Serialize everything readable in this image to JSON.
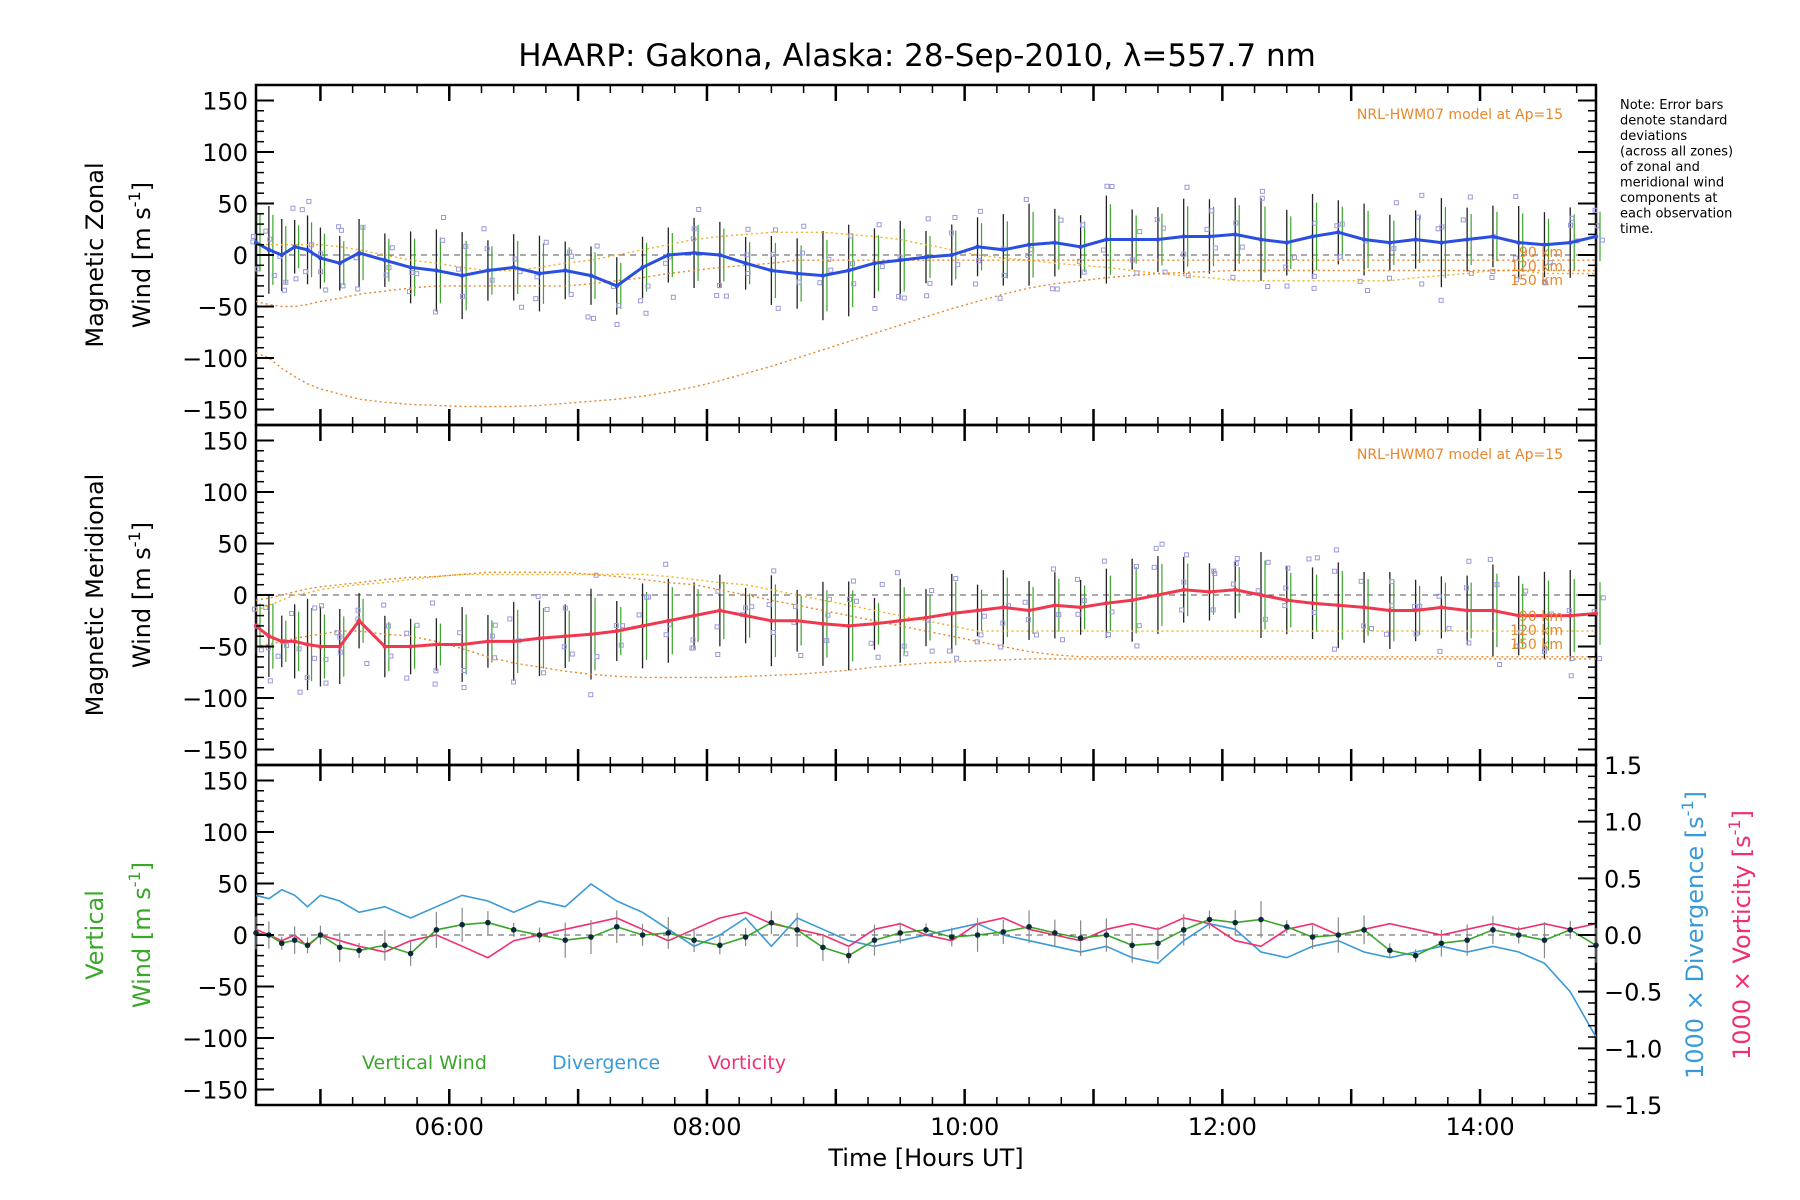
{
  "title": "HAARP: Gakona,  Alaska: 28-Sep-2010, λ=557.7 nm",
  "note": [
    "Note: Error bars",
    "denote standard",
    "deviations",
    "(across all zones)",
    "of zonal and",
    "meridional wind",
    "components at",
    "each observation",
    "time."
  ],
  "xlabel": "Time [Hours UT]",
  "x_ticks": [
    "06:00",
    "08:00",
    "10:00",
    "12:00",
    "14:00"
  ],
  "y_ticks": [
    "150",
    "100",
    "50",
    "0",
    "−50",
    "−100",
    "−150"
  ],
  "y2_ticks": [
    "1.5",
    "1.0",
    "0.5",
    "0.0",
    "−0.5",
    "−1.0",
    "−1.5"
  ],
  "colors": {
    "zonal": "#2a4fe0",
    "meridional": "#f0384f",
    "vertical": "#3aa62a",
    "divergence": "#3a9ad8",
    "vorticity": "#f0306e",
    "model": "#e8862a",
    "scatter": "#9999dd"
  },
  "panels": {
    "zonal": {
      "ylabel_line1": "Magnetic Zonal",
      "ylabel_line2": "Wind [m s",
      "ylabel_sup": "-1",
      "ylabel_end": "]",
      "model_label": "NRL-HWM07 model at Ap=15",
      "alt_labels": [
        "90 km",
        "120 km",
        "150 km"
      ]
    },
    "meridional": {
      "ylabel_line1": "Magnetic Meridional",
      "ylabel_line2": "Wind [m s",
      "ylabel_sup": "-1",
      "ylabel_end": "]",
      "model_label": "NRL-HWM07 model at Ap=15",
      "alt_labels": [
        "90 km",
        "120 km",
        "150 km"
      ]
    },
    "vertical": {
      "ylabel_line1": "Vertical",
      "ylabel_line2": "Wind [m s",
      "ylabel_sup": "-1",
      "ylabel_end": "]",
      "y2_label_div": "1000 × Divergence [s",
      "y2_label_vort": "1000 × Vorticity [s",
      "y2_sup": "-1",
      "y2_end": "]",
      "legend": [
        "Vertical Wind",
        "Divergence",
        "Vorticity"
      ]
    }
  },
  "chart_data": [
    {
      "type": "line",
      "title": "HAARP: Gakona,  Alaska: 28-Sep-2010, λ=557.7 nm",
      "ylabel": "Magnetic Zonal Wind [m s-1]",
      "xlim": [
        4.5,
        14.9
      ],
      "ylim": [
        -165,
        165
      ],
      "x": [
        4.5,
        4.6,
        4.7,
        4.8,
        4.9,
        5.0,
        5.15,
        5.3,
        5.5,
        5.7,
        5.9,
        6.1,
        6.3,
        6.5,
        6.7,
        6.9,
        7.1,
        7.3,
        7.5,
        7.7,
        7.9,
        8.1,
        8.3,
        8.5,
        8.7,
        8.9,
        9.1,
        9.3,
        9.5,
        9.7,
        9.9,
        10.1,
        10.3,
        10.5,
        10.7,
        10.9,
        11.1,
        11.3,
        11.5,
        11.7,
        11.9,
        12.1,
        12.3,
        12.5,
        12.7,
        12.9,
        13.1,
        13.3,
        13.5,
        13.7,
        13.9,
        14.1,
        14.3,
        14.5,
        14.7,
        14.9
      ],
      "series": [
        {
          "values": [
            12,
            5,
            0,
            8,
            5,
            -3,
            -8,
            2,
            -5,
            -12,
            -15,
            -20,
            -15,
            -12,
            -18,
            -15,
            -20,
            -30,
            -12,
            0,
            2,
            0,
            -8,
            -15,
            -18,
            -20,
            -15,
            -8,
            -5,
            -2,
            0,
            8,
            5,
            10,
            12,
            8,
            15,
            15,
            15,
            18,
            18,
            20,
            15,
            12,
            18,
            22,
            15,
            12,
            15,
            12,
            15,
            18,
            12,
            10,
            12,
            18
          ]
        },
        {
          "values": [
            10,
            10,
            10,
            10,
            10,
            10,
            8,
            5,
            0,
            -5,
            -8,
            -12,
            -15,
            -15,
            -12,
            -8,
            -5,
            0,
            5,
            10,
            15,
            18,
            20,
            22,
            22,
            22,
            20,
            18,
            15,
            10,
            5,
            0,
            -3,
            -5,
            -8,
            -10,
            -12,
            -15,
            -18,
            -20,
            -22,
            -25,
            -25,
            -25,
            -25,
            -25,
            -25,
            -25,
            -22,
            -20,
            -18,
            -15,
            -15,
            -18,
            -18,
            -18
          ]
        },
        {
          "values": [
            -45,
            -48,
            -50,
            -50,
            -48,
            -45,
            -42,
            -38,
            -35,
            -32,
            -30,
            -30,
            -30,
            -30,
            -30,
            -30,
            -28,
            -25,
            -22,
            -18,
            -15,
            -12,
            -10,
            -8,
            -5,
            -5,
            -5,
            -5,
            -5,
            -5,
            -5,
            -5,
            -5,
            -5,
            -5,
            -5,
            -5,
            -5,
            -5,
            -5,
            -5,
            -5,
            -5,
            -5,
            -5,
            -5,
            -5,
            -5,
            -5,
            -5,
            -5,
            -5,
            -5,
            -5,
            -5,
            -5
          ]
        },
        {
          "values": [
            -95,
            -100,
            -110,
            -118,
            -125,
            -130,
            -135,
            -140,
            -143,
            -145,
            -146,
            -147,
            -147,
            -147,
            -146,
            -144,
            -142,
            -140,
            -137,
            -133,
            -128,
            -122,
            -115,
            -108,
            -100,
            -92,
            -84,
            -76,
            -68,
            -60,
            -52,
            -45,
            -38,
            -32,
            -28,
            -25,
            -22,
            -20,
            -18,
            -17,
            -16,
            -15,
            -15,
            -15,
            -15,
            -15,
            -15,
            -15,
            -15,
            -15,
            -15,
            -15,
            -15,
            -15,
            -15,
            -15
          ]
        }
      ]
    },
    {
      "type": "line",
      "ylabel": "Magnetic Meridional Wind [m s-1]",
      "xlim": [
        4.5,
        14.9
      ],
      "ylim": [
        -165,
        165
      ],
      "x": [
        4.5,
        4.6,
        4.7,
        4.8,
        4.9,
        5.0,
        5.15,
        5.3,
        5.5,
        5.7,
        5.9,
        6.1,
        6.3,
        6.5,
        6.7,
        6.9,
        7.1,
        7.3,
        7.5,
        7.7,
        7.9,
        8.1,
        8.3,
        8.5,
        8.7,
        8.9,
        9.1,
        9.3,
        9.5,
        9.7,
        9.9,
        10.1,
        10.3,
        10.5,
        10.7,
        10.9,
        11.1,
        11.3,
        11.5,
        11.7,
        11.9,
        12.1,
        12.3,
        12.5,
        12.7,
        12.9,
        13.1,
        13.3,
        13.5,
        13.7,
        13.9,
        14.1,
        14.3,
        14.5,
        14.7,
        14.9
      ],
      "series": [
        {
          "values": [
            -30,
            -40,
            -45,
            -45,
            -48,
            -50,
            -50,
            -25,
            -50,
            -50,
            -48,
            -48,
            -45,
            -45,
            -42,
            -40,
            -38,
            -35,
            -30,
            -25,
            -20,
            -15,
            -20,
            -25,
            -25,
            -28,
            -30,
            -28,
            -25,
            -22,
            -18,
            -15,
            -12,
            -15,
            -10,
            -12,
            -8,
            -5,
            0,
            5,
            3,
            5,
            0,
            -5,
            -8,
            -10,
            -12,
            -15,
            -15,
            -12,
            -15,
            -15,
            -20,
            -20,
            -20,
            -18
          ]
        },
        {
          "values": [
            -15,
            -10,
            -5,
            0,
            2,
            5,
            8,
            10,
            12,
            15,
            18,
            20,
            20,
            20,
            20,
            20,
            20,
            20,
            20,
            18,
            15,
            12,
            10,
            5,
            0,
            -5,
            -10,
            -15,
            -20,
            -25,
            -30,
            -35,
            -35,
            -35,
            -35,
            -35,
            -35,
            -35,
            -35,
            -35,
            -35,
            -35,
            -35,
            -35,
            -35,
            -35,
            -35,
            -35,
            -35,
            -35,
            -35,
            -35,
            -35,
            -35,
            -35,
            -35
          ]
        },
        {
          "values": [
            -5,
            -3,
            0,
            3,
            6,
            8,
            10,
            12,
            15,
            17,
            18,
            20,
            22,
            22,
            22,
            22,
            20,
            18,
            15,
            12,
            10,
            5,
            0,
            -5,
            -10,
            -15,
            -20,
            -25,
            -30,
            -35,
            -40,
            -45,
            -50,
            -55,
            -58,
            -60,
            -60,
            -60,
            -60,
            -60,
            -60,
            -60,
            -60,
            -60,
            -60,
            -60,
            -60,
            -60,
            -60,
            -60,
            -60,
            -60,
            -60,
            -60,
            -60,
            -60
          ]
        },
        {
          "values": [
            -50,
            -48,
            -45,
            -42,
            -40,
            -38,
            -35,
            -35,
            -38,
            -40,
            -45,
            -52,
            -60,
            -66,
            -70,
            -74,
            -77,
            -79,
            -80,
            -80,
            -80,
            -80,
            -79,
            -78,
            -77,
            -75,
            -73,
            -70,
            -68,
            -66,
            -65,
            -64,
            -63,
            -62,
            -62,
            -62,
            -62,
            -62,
            -62,
            -62,
            -62,
            -62,
            -62,
            -62,
            -62,
            -62,
            -62,
            -62,
            -62,
            -62,
            -62,
            -62,
            -62,
            -62,
            -62,
            -62
          ]
        }
      ]
    },
    {
      "type": "line",
      "ylabel": "Vertical Wind [m s-1]",
      "y2label": "1000 × Divergence [s-1] / 1000 × Vorticity [s-1]",
      "xlim": [
        4.5,
        14.9
      ],
      "ylim": [
        -165,
        165
      ],
      "y2lim": [
        -1.5,
        1.5
      ],
      "x": [
        4.5,
        4.6,
        4.7,
        4.8,
        4.9,
        5.0,
        5.15,
        5.3,
        5.5,
        5.7,
        5.9,
        6.1,
        6.3,
        6.5,
        6.7,
        6.9,
        7.1,
        7.3,
        7.5,
        7.7,
        7.9,
        8.1,
        8.3,
        8.5,
        8.7,
        8.9,
        9.1,
        9.3,
        9.5,
        9.7,
        9.9,
        10.1,
        10.3,
        10.5,
        10.7,
        10.9,
        11.1,
        11.3,
        11.5,
        11.7,
        11.9,
        12.1,
        12.3,
        12.5,
        12.7,
        12.9,
        13.1,
        13.3,
        13.5,
        13.7,
        13.9,
        14.1,
        14.3,
        14.5,
        14.7,
        14.9
      ],
      "series": [
        {
          "name": "Vertical Wind",
          "values": [
            2,
            0,
            -8,
            -5,
            -10,
            0,
            -12,
            -15,
            -10,
            -18,
            5,
            10,
            12,
            5,
            0,
            -5,
            -2,
            8,
            0,
            2,
            -5,
            -10,
            -2,
            12,
            5,
            -12,
            -20,
            -5,
            2,
            5,
            -2,
            0,
            3,
            8,
            2,
            -3,
            0,
            -10,
            -8,
            5,
            15,
            12,
            15,
            8,
            -2,
            0,
            5,
            -15,
            -20,
            -8,
            -5,
            5,
            0,
            -5,
            5,
            -10
          ]
        },
        {
          "name": "Divergence",
          "values": [
            0.35,
            0.32,
            0.4,
            0.35,
            0.25,
            0.35,
            0.3,
            0.2,
            0.25,
            0.15,
            0.25,
            0.35,
            0.3,
            0.2,
            0.3,
            0.25,
            0.45,
            0.3,
            0.2,
            0.05,
            -0.1,
            0.0,
            0.15,
            -0.1,
            0.15,
            0.05,
            -0.05,
            -0.1,
            -0.05,
            0.0,
            0.05,
            0.1,
            0.0,
            -0.05,
            -0.1,
            -0.15,
            -0.1,
            -0.2,
            -0.25,
            -0.05,
            0.1,
            0.05,
            -0.15,
            -0.2,
            -0.1,
            -0.05,
            -0.15,
            -0.2,
            -0.15,
            -0.1,
            -0.15,
            -0.1,
            -0.15,
            -0.25,
            -0.5,
            -0.9
          ]
        },
        {
          "name": "Vorticity",
          "values": [
            0.05,
            0.0,
            -0.05,
            0.0,
            -0.1,
            0.0,
            -0.05,
            -0.1,
            -0.15,
            -0.05,
            0.0,
            -0.1,
            -0.2,
            -0.05,
            0.0,
            0.05,
            0.1,
            0.15,
            0.05,
            -0.05,
            0.05,
            0.15,
            0.2,
            0.1,
            0.05,
            0.0,
            -0.1,
            0.05,
            0.1,
            0.0,
            -0.05,
            0.1,
            0.15,
            0.05,
            0.0,
            -0.05,
            0.05,
            0.1,
            0.05,
            0.15,
            0.1,
            -0.05,
            -0.1,
            0.05,
            0.1,
            0.0,
            0.05,
            0.1,
            0.05,
            0.0,
            0.05,
            0.1,
            0.05,
            0.1,
            0.05,
            0.1
          ]
        }
      ]
    }
  ]
}
